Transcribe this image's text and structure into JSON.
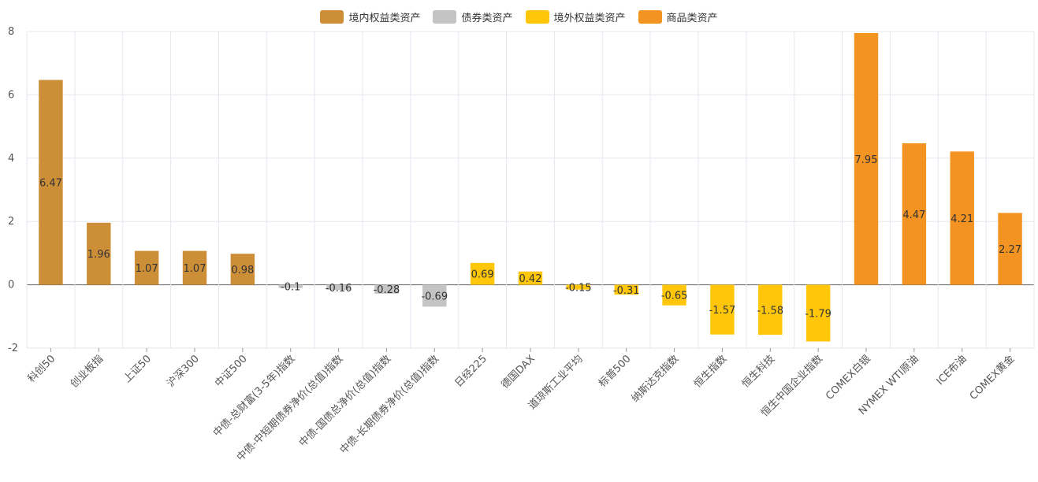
{
  "chart_data": {
    "type": "bar",
    "title": "",
    "xlabel": "",
    "ylabel": "",
    "ylim": [
      -2,
      8
    ],
    "yticks": [
      -2,
      0,
      2,
      4,
      6,
      8
    ],
    "grid": true,
    "legend_position": "top-center",
    "legend": [
      {
        "name": "境内权益类资产",
        "color": "#CD8E38"
      },
      {
        "name": "债券类资产",
        "color": "#C4C4C4"
      },
      {
        "name": "境外权益类资产",
        "color": "#FFC60A"
      },
      {
        "name": "商品类资产",
        "color": "#F39321"
      }
    ],
    "categories": [
      "科创50",
      "创业板指",
      "上证50",
      "沪深300",
      "中证500",
      "中债-总财富(3-5年)指数",
      "中债-中短期债券净价(总值)指数",
      "中债-国债总净价(总值)指数",
      "中债-长期债券净价(总值)指数",
      "日经225",
      "德国DAX",
      "道琼斯工业平均",
      "标普500",
      "纳斯达克指数",
      "恒生指数",
      "恒生科技",
      "恒生中国企业指数",
      "COMEX白银",
      "NYMEX WTI原油",
      "ICE布油",
      "COMEX黄金"
    ],
    "values": [
      6.47,
      1.96,
      1.07,
      1.07,
      0.98,
      -0.1,
      -0.16,
      -0.28,
      -0.69,
      0.69,
      0.42,
      -0.15,
      -0.31,
      -0.65,
      -1.57,
      -1.58,
      -1.79,
      7.95,
      4.47,
      4.21,
      2.27
    ],
    "groups": [
      0,
      0,
      0,
      0,
      0,
      1,
      1,
      1,
      1,
      2,
      2,
      2,
      2,
      2,
      2,
      2,
      2,
      3,
      3,
      3,
      3
    ]
  }
}
